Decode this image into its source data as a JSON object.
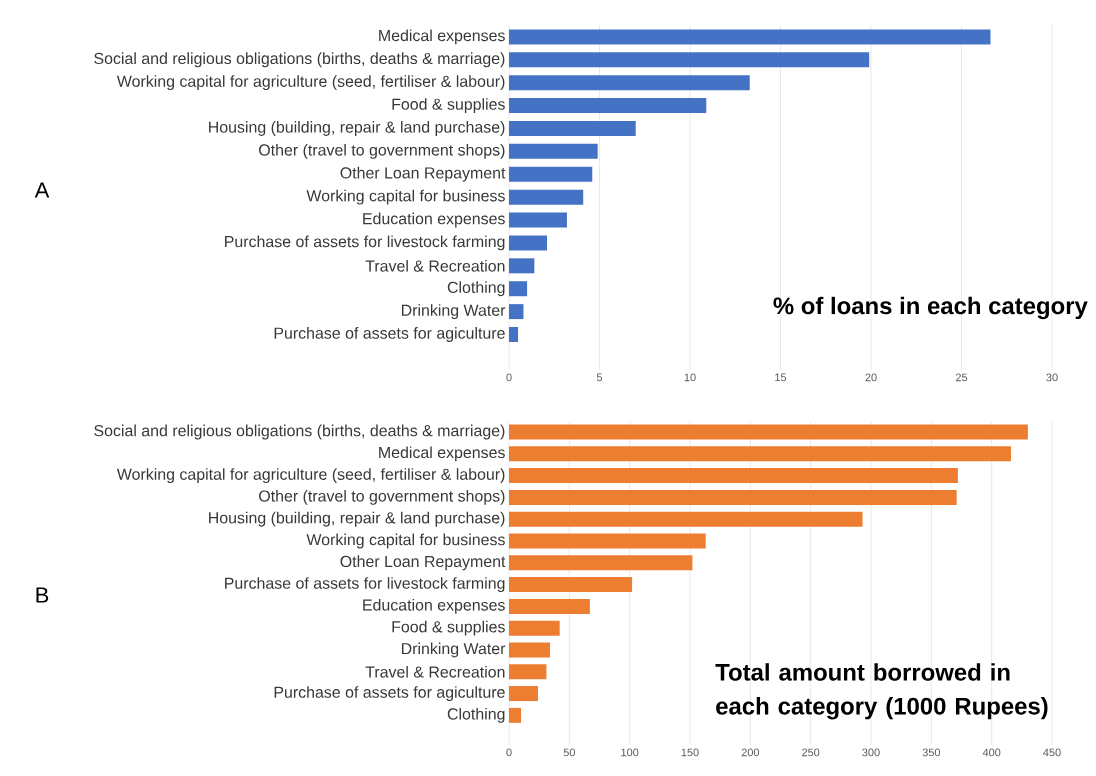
{
  "chart_data": [
    {
      "type": "bar",
      "orientation": "horizontal",
      "title": "% of loans in each category",
      "annotations": [
        "A"
      ],
      "categories": [
        "Medical expenses",
        "Social and religious obligations (births, deaths & marriage)",
        "Working capital for agriculture (seed, fertiliser & labour)",
        "Food & supplies",
        "Housing (building, repair & land purchase)",
        "Other (travel to government shops)",
        "Other Loan Repayment",
        "Working capital for business",
        "Education expenses",
        "Purchase of assets for livestock farming",
        "Travel & Recreation",
        "Clothing",
        "Drinking Water",
        "Purchase of assets for agiculture"
      ],
      "values": [
        26.6,
        19.9,
        13.3,
        10.9,
        7.0,
        4.9,
        4.6,
        4.1,
        3.2,
        2.1,
        1.4,
        1.0,
        0.8,
        0.5
      ],
      "color": "#4472c4",
      "xlim": [
        0,
        30
      ],
      "xticks": [
        0,
        5,
        10,
        15,
        20,
        25,
        30
      ],
      "grid": "x"
    },
    {
      "type": "bar",
      "orientation": "horizontal",
      "title": "Total amount borrowed in each category (1000 Rupees)",
      "annotations": [
        "B"
      ],
      "categories": [
        "Social and religious obligations (births, deaths & marriage)",
        "Medical expenses",
        "Working capital for agriculture (seed, fertiliser & labour)",
        "Other (travel to government shops)",
        "Housing (building, repair & land purchase)",
        "Working capital for business",
        "Other Loan Repayment",
        "Purchase of assets for livestock farming",
        "Education expenses",
        "Food & supplies",
        "Drinking Water",
        "Travel & Recreation",
        "Purchase of assets for agiculture",
        "Clothing"
      ],
      "values": [
        430,
        416,
        372,
        371,
        293,
        163,
        152,
        102,
        67,
        42,
        34,
        31,
        24,
        10
      ],
      "color": "#ed7d31",
      "xlim": [
        0,
        450
      ],
      "xticks": [
        0,
        50,
        100,
        150,
        200,
        250,
        300,
        350,
        400,
        450
      ],
      "grid": "x"
    }
  ]
}
